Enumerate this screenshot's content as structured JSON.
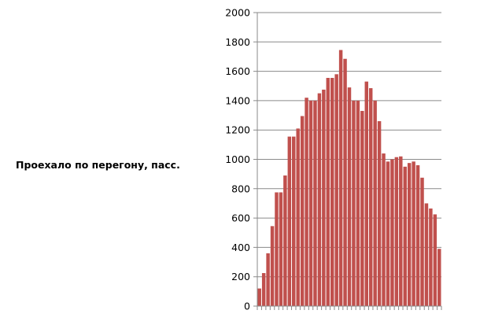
{
  "chart_data": {
    "type": "bar",
    "ylabel": "Проехало по перегону, пасс.",
    "ylim": [
      0,
      2000
    ],
    "y_ticks": [
      0,
      200,
      400,
      600,
      800,
      1000,
      1200,
      1400,
      1600,
      1800,
      2000
    ],
    "grid": "horizontal",
    "bar_color": "#c0504d",
    "values": [
      120,
      225,
      360,
      545,
      775,
      775,
      890,
      1155,
      1155,
      1210,
      1295,
      1420,
      1400,
      1400,
      1450,
      1475,
      1555,
      1555,
      1580,
      1745,
      1685,
      1490,
      1400,
      1400,
      1330,
      1530,
      1485,
      1400,
      1260,
      1040,
      985,
      1000,
      1015,
      1020,
      950,
      975,
      985,
      960,
      875,
      700,
      665,
      625,
      390
    ]
  }
}
